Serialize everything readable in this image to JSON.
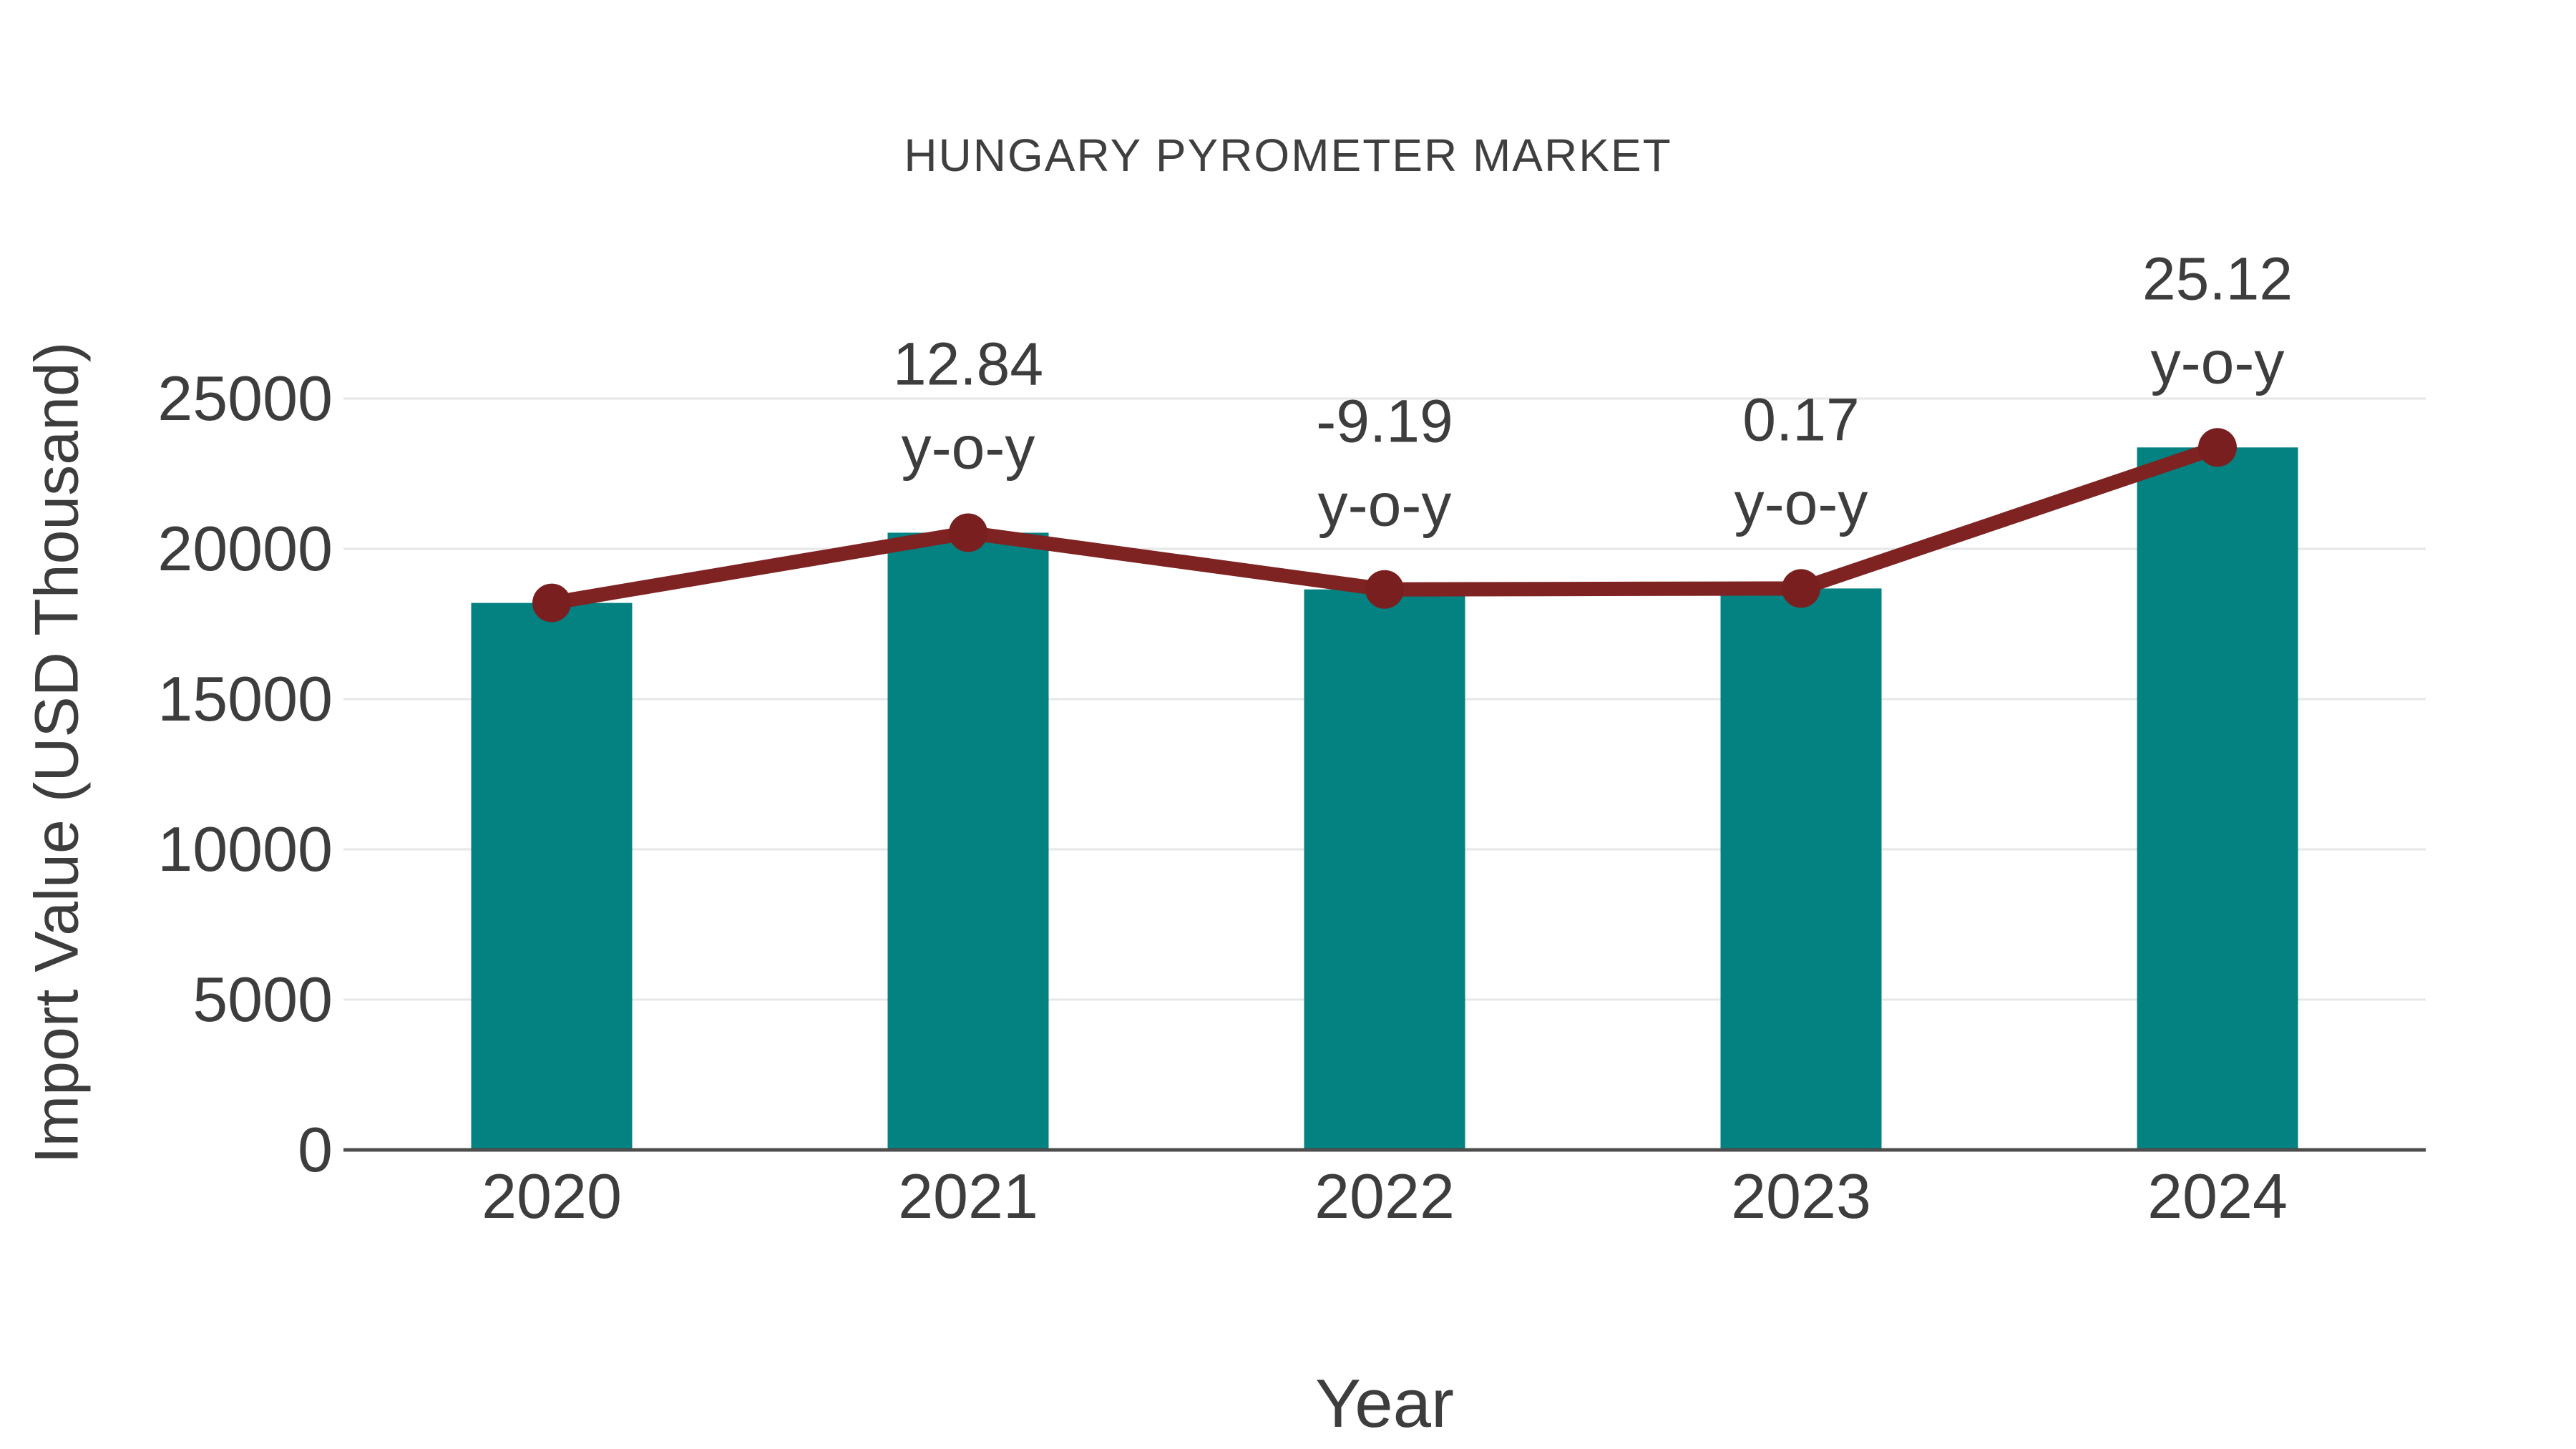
{
  "chart_data": {
    "type": "bar",
    "title": "HUNGARY PYROMETER MARKET",
    "xlabel": "Year",
    "ylabel": "Import Value (USD Thousand)",
    "categories": [
      "2020",
      "2021",
      "2022",
      "2023",
      "2024"
    ],
    "series": [
      {
        "name": "Import Value (USD Thousand)",
        "type": "bar",
        "values": [
          18200,
          20537,
          18650,
          18681,
          23374
        ]
      },
      {
        "name": "y-o-y trend",
        "type": "line",
        "values": [
          18200,
          20537,
          18650,
          18681,
          23374
        ]
      }
    ],
    "annotations": [
      {
        "category": "2021",
        "value": "12.84",
        "label": "y-o-y"
      },
      {
        "category": "2022",
        "value": "-9.19",
        "label": "y-o-y"
      },
      {
        "category": "2023",
        "value": "0.17",
        "label": "y-o-y"
      },
      {
        "category": "2024",
        "value": "25.12",
        "label": "y-o-y"
      }
    ],
    "yticks": [
      0,
      5000,
      10000,
      15000,
      20000,
      25000
    ],
    "ylim": [
      0,
      26500
    ],
    "grid": true,
    "legend": "none",
    "colors": {
      "bar": "#048181",
      "line": "#7e2222",
      "marker": "#7a1f1f",
      "grid": "#e7e7e7",
      "axis": "#4d4d4d",
      "text": "#3d3d3d"
    }
  }
}
